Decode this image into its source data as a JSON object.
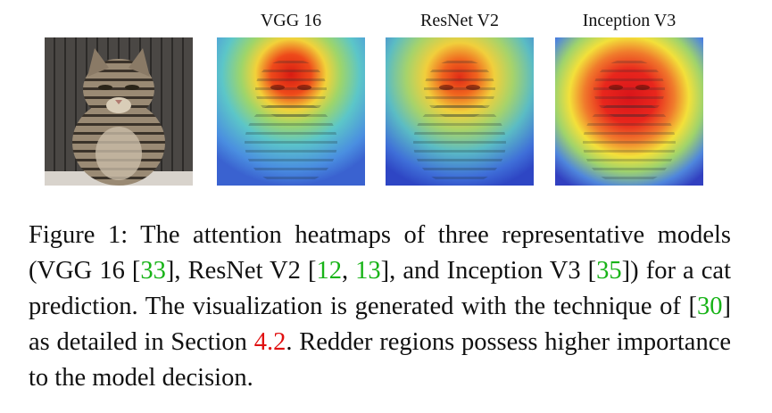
{
  "figure": {
    "panels": [
      {
        "id": "original",
        "label": ""
      },
      {
        "id": "vgg16",
        "label": "VGG 16"
      },
      {
        "id": "resnet_v2",
        "label": "ResNet V2"
      },
      {
        "id": "inception_v3",
        "label": "Inception V3"
      }
    ],
    "caption": {
      "prefix": "Figure 1:",
      "part1": " The attention heatmaps of three representative models (VGG 16 [",
      "cite_vgg": "33",
      "part2": "], ResNet V2 [",
      "cite_resnet_a": "12",
      "sep": ", ",
      "cite_resnet_b": "13",
      "part3": "], and Inception V3 [",
      "cite_inception": "35",
      "part4": "]) for a cat prediction. The visualization is generated with the technique of [",
      "cite_technique": "30",
      "part5": "] as detailed in Section ",
      "section_ref": "4.2",
      "part6": ". Redder regions possess higher importance to the model decision."
    },
    "colors": {
      "citation": "#17b317",
      "section_ref": "#e01010",
      "heat_high": "#e8261c",
      "heat_mid": "#f3e03a",
      "heat_low": "#3a6fe0"
    }
  }
}
